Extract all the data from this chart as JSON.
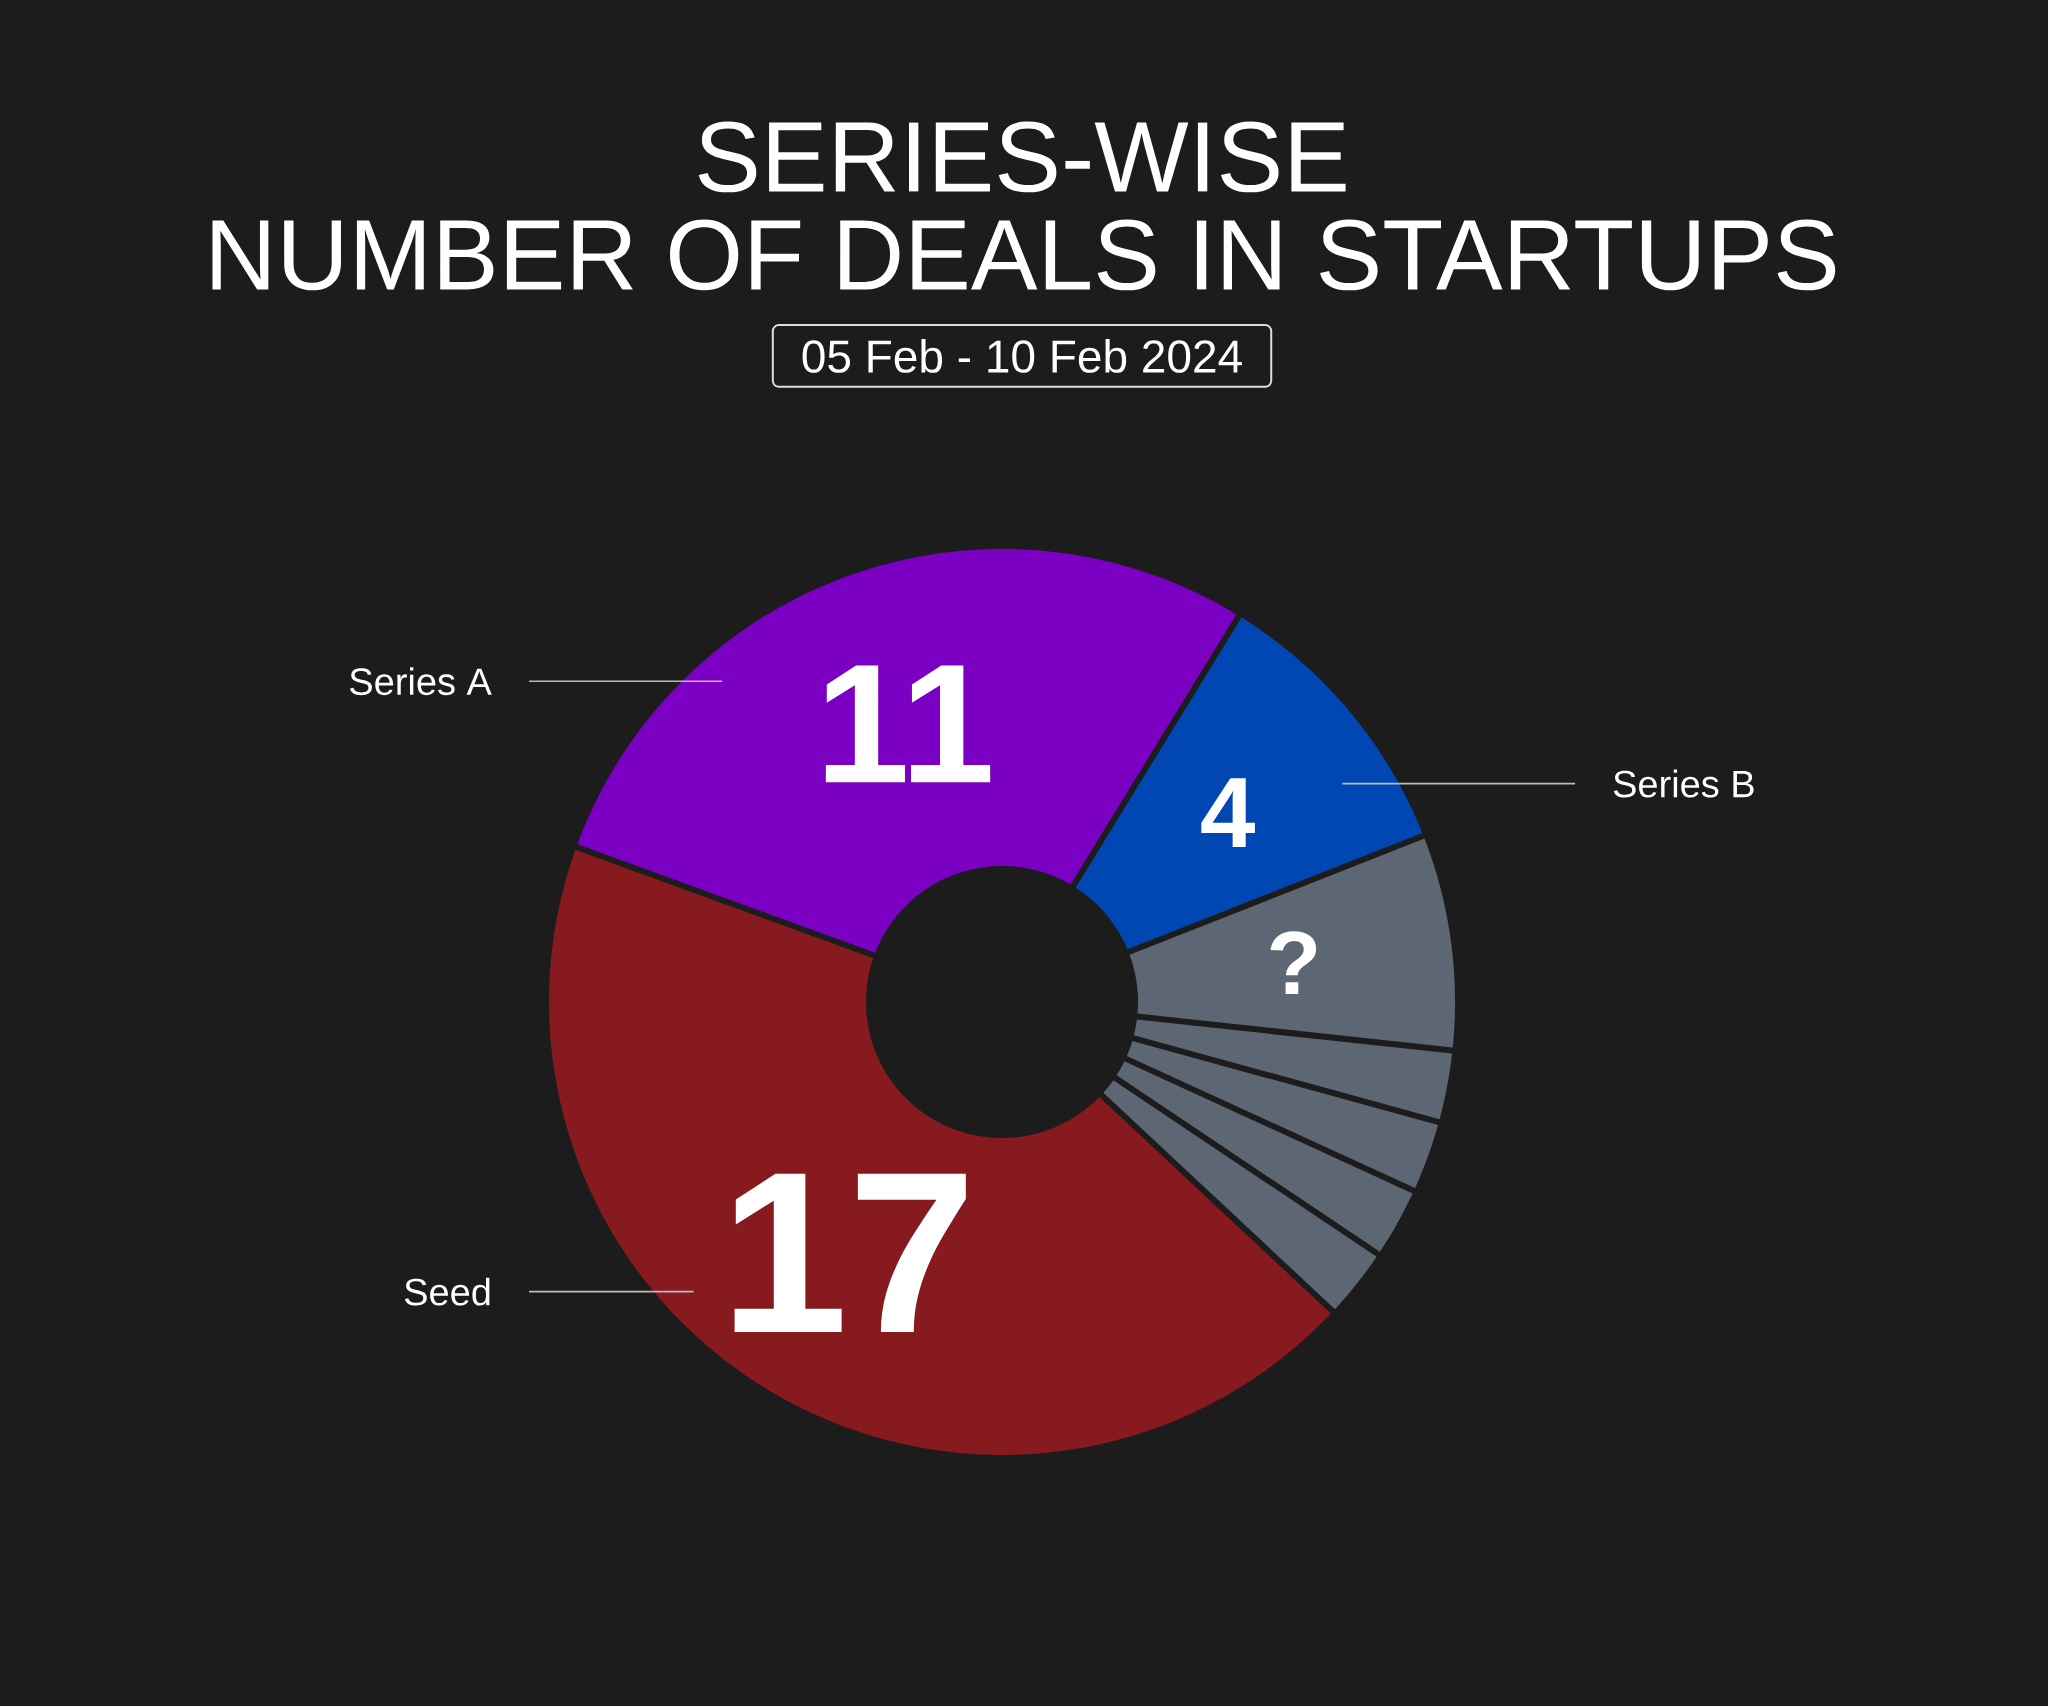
{
  "chart_data": {
    "type": "donut",
    "title": "SERIES-WISE",
    "subtitle": "NUMBER OF DEALS IN STARTUPS",
    "annotations": [
      "05 Feb - 10 Feb 2024"
    ],
    "categories": [
      "Series A",
      "Series B",
      null,
      null,
      null,
      null,
      null,
      "Seed"
    ],
    "values": [
      11,
      4,
      3,
      1,
      1,
      1,
      1,
      17
    ],
    "colors": [
      "#7b00c4",
      "#0047b3",
      "#5d6774",
      "#5d6774",
      "#5d6774",
      "#5d6774",
      "#5d6774",
      "#861a1f"
    ],
    "value_labels": [
      "11",
      "4",
      "?",
      null,
      null,
      null,
      null,
      "17"
    ]
  }
}
